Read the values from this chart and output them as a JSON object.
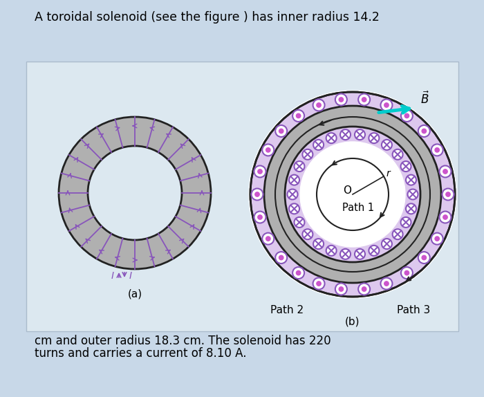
{
  "bg_color": "#c8d8e8",
  "panel_bg": "#dce8f0",
  "title_text": "A toroidal solenoid (see the figure ) has inner radius 14.2",
  "bottom_text1": "cm and outer radius 18.3 cm. The solenoid has 220",
  "bottom_text2": "turns and carries a current of 8.10 A.",
  "label_a": "(a)",
  "label_b": "(b)",
  "toroid_gray": "#b0b0b0",
  "toroid_edge": "#222222",
  "purple": "#8855bb",
  "purple_fill": "#cc55cc",
  "purple_light": "#ddc8ee",
  "cyan": "#00cccc",
  "white": "#ffffff",
  "fig_width": 7.0,
  "fig_height": 5.74,
  "dpi": 100
}
